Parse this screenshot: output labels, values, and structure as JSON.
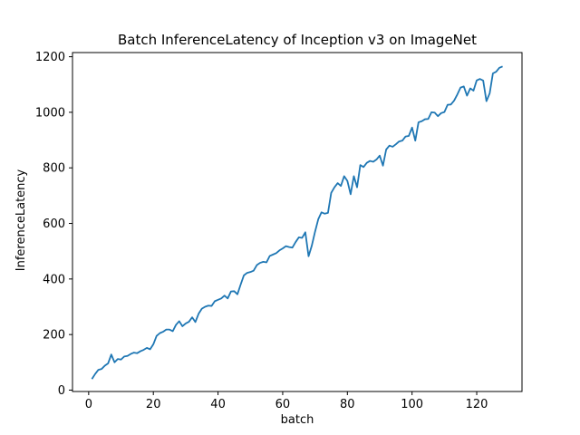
{
  "chart_data": {
    "type": "line",
    "title": "Batch InferenceLatency of Inception v3 on ImageNet",
    "xlabel": "batch",
    "ylabel": "InferenceLatency",
    "xlim": [
      -5,
      134
    ],
    "ylim": [
      -5,
      1215
    ],
    "xticks": [
      0,
      20,
      40,
      60,
      80,
      100,
      120
    ],
    "yticks": [
      0,
      200,
      400,
      600,
      800,
      1000,
      1200
    ],
    "grid": false,
    "series": [
      {
        "color": "#1f77b4",
        "x": [
          1,
          2,
          3,
          4,
          5,
          6,
          7,
          8,
          9,
          10,
          11,
          12,
          13,
          14,
          15,
          16,
          17,
          18,
          19,
          20,
          21,
          22,
          23,
          24,
          25,
          26,
          27,
          28,
          29,
          30,
          31,
          32,
          33,
          34,
          35,
          36,
          37,
          38,
          39,
          40,
          41,
          42,
          43,
          44,
          45,
          46,
          47,
          48,
          49,
          50,
          51,
          52,
          53,
          54,
          55,
          56,
          57,
          58,
          59,
          60,
          61,
          62,
          63,
          64,
          65,
          66,
          67,
          68,
          69,
          70,
          71,
          72,
          73,
          74,
          75,
          76,
          77,
          78,
          79,
          80,
          81,
          82,
          83,
          84,
          85,
          86,
          87,
          88,
          89,
          90,
          91,
          92,
          93,
          94,
          95,
          96,
          97,
          98,
          99,
          100,
          101,
          102,
          103,
          104,
          105,
          106,
          107,
          108,
          109,
          110,
          111,
          112,
          113,
          114,
          115,
          116,
          117,
          118,
          119,
          120,
          121,
          122,
          123,
          124,
          125,
          126,
          127,
          128
        ],
        "values": [
          40,
          58,
          73,
          76,
          88,
          96,
          128,
          100,
          112,
          110,
          121,
          123,
          130,
          135,
          133,
          140,
          145,
          152,
          147,
          165,
          195,
          205,
          210,
          218,
          218,
          212,
          235,
          248,
          230,
          240,
          246,
          262,
          245,
          275,
          293,
          300,
          304,
          303,
          320,
          325,
          330,
          340,
          330,
          355,
          356,
          345,
          380,
          413,
          422,
          425,
          430,
          450,
          458,
          462,
          460,
          483,
          488,
          493,
          503,
          510,
          518,
          515,
          513,
          533,
          550,
          548,
          568,
          482,
          520,
          570,
          615,
          640,
          635,
          638,
          710,
          730,
          745,
          735,
          770,
          753,
          705,
          770,
          730,
          810,
          803,
          818,
          825,
          822,
          830,
          844,
          808,
          866,
          880,
          876,
          885,
          895,
          898,
          913,
          915,
          945,
          898,
          964,
          968,
          975,
          976,
          1000,
          999,
          986,
          997,
          1001,
          1027,
          1028,
          1042,
          1064,
          1089,
          1093,
          1060,
          1086,
          1078,
          1115,
          1120,
          1114,
          1040,
          1068,
          1140,
          1146,
          1160,
          1165
        ]
      }
    ]
  }
}
